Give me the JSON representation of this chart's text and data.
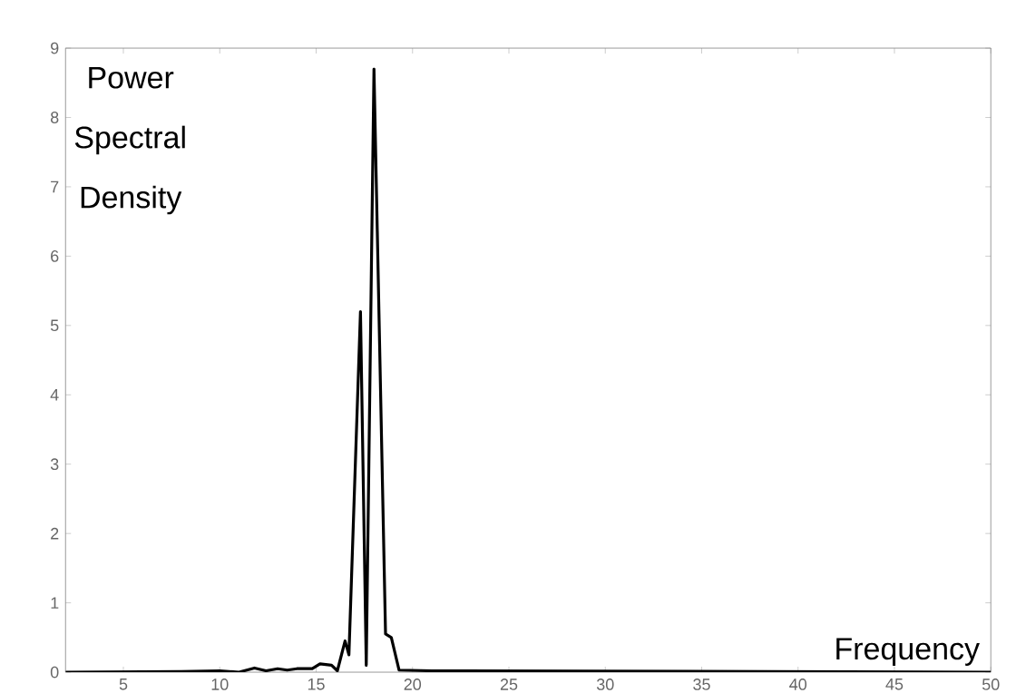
{
  "chart_data": {
    "type": "line",
    "ylabel": "Power Spectral Density",
    "xlabel": "Frequency",
    "xlim": [
      2,
      50
    ],
    "ylim": [
      0,
      9
    ],
    "xticks": [
      5,
      10,
      15,
      20,
      25,
      30,
      35,
      40,
      45,
      50
    ],
    "yticks": [
      0,
      1,
      2,
      3,
      4,
      5,
      6,
      7,
      8,
      9
    ],
    "grid": false,
    "marker": "none",
    "line_style": "solid",
    "series": [
      {
        "color": "#000000",
        "x": [
          2,
          8,
          10,
          11,
          11.8,
          12.4,
          13,
          13.5,
          14,
          14.8,
          15.2,
          15.8,
          16.1,
          16.5,
          16.7,
          17.3,
          17.6,
          18.0,
          18.6,
          18.9,
          19.3,
          21,
          50
        ],
        "values": [
          0,
          0.01,
          0.02,
          0,
          0.06,
          0.02,
          0.05,
          0.03,
          0.05,
          0.05,
          0.12,
          0.1,
          0.02,
          0.45,
          0.25,
          5.2,
          0.1,
          8.7,
          0.55,
          0.5,
          0.03,
          0.02,
          0
        ]
      }
    ]
  }
}
